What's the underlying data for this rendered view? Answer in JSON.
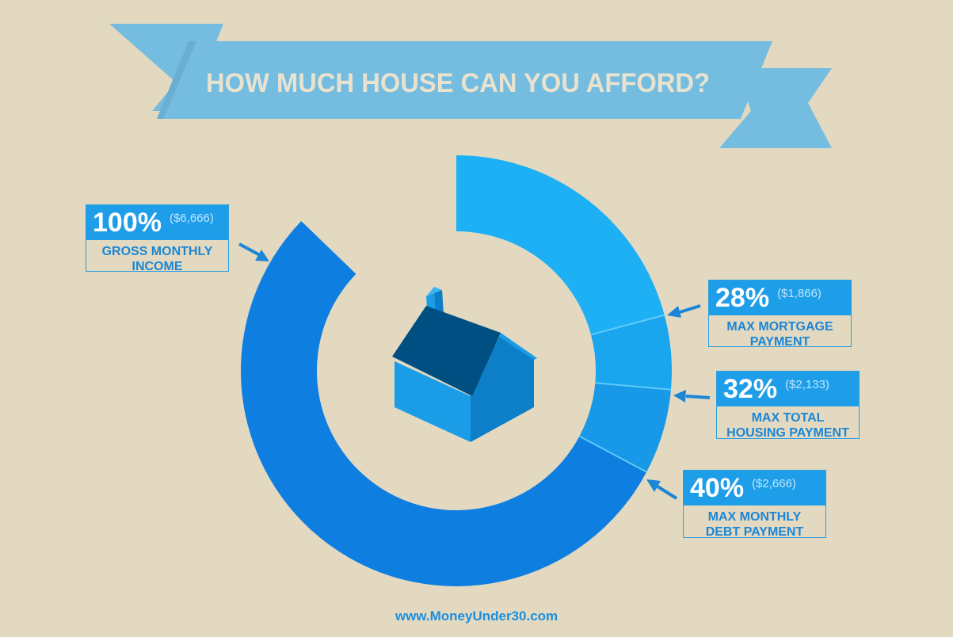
{
  "title": "HOW MUCH HOUSE CAN YOU AFFORD?",
  "website": "www.MoneyUnder30.com",
  "colors": {
    "background": "#e3d9c0",
    "banner": "#74bde0",
    "ring_main": "#0e7fe0",
    "ring_28": "#1eb0f5",
    "ring_32": "#1aa6ef",
    "ring_40": "#1799e8",
    "callout_fill": "#1e9ee9",
    "label_text": "#1b86d6"
  },
  "chart_data": {
    "type": "pie",
    "title": "HOW MUCH HOUSE CAN YOU AFFORD?",
    "total": {
      "percent": "100%",
      "amount": "($6,666)",
      "label_lines": [
        "GROSS MONTHLY",
        "INCOME"
      ]
    },
    "slices": [
      {
        "percent": "28%",
        "value": 28,
        "amount": "($1,866)",
        "label_lines": [
          "MAX MORTGAGE",
          "PAYMENT"
        ]
      },
      {
        "percent": "32%",
        "value": 32,
        "amount": "($2,133)",
        "label_lines": [
          "MAX TOTAL",
          "HOUSING PAYMENT"
        ]
      },
      {
        "percent": "40%",
        "value": 40,
        "amount": "($2,666)",
        "label_lines": [
          "MAX MONTHLY",
          "DEBT PAYMENT"
        ]
      }
    ]
  }
}
